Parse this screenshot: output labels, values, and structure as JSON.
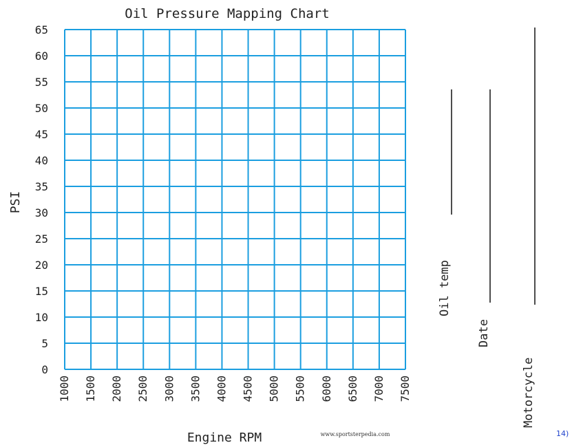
{
  "chart_data": {
    "type": "line",
    "title": "Oil Pressure Mapping Chart",
    "xlabel": "Engine RPM",
    "ylabel": "PSI",
    "x_ticks": [
      1000,
      1500,
      2000,
      2500,
      3000,
      3500,
      4000,
      4500,
      5000,
      5500,
      6000,
      6500,
      7000,
      7500
    ],
    "y_ticks": [
      0,
      5,
      10,
      15,
      20,
      25,
      30,
      35,
      40,
      45,
      50,
      55,
      60,
      65
    ],
    "xlim": [
      1000,
      7500
    ],
    "ylim": [
      0,
      65
    ],
    "grid": true,
    "series": []
  },
  "fields": {
    "oil_temp": "Oil temp",
    "date": "Date",
    "motorcycle": "Motorcycle"
  },
  "credit": "www.sportsterpedia.com",
  "page_number": "14)",
  "colors": {
    "grid": "#1a9ee0",
    "text": "#222222",
    "lines": "#111111"
  }
}
